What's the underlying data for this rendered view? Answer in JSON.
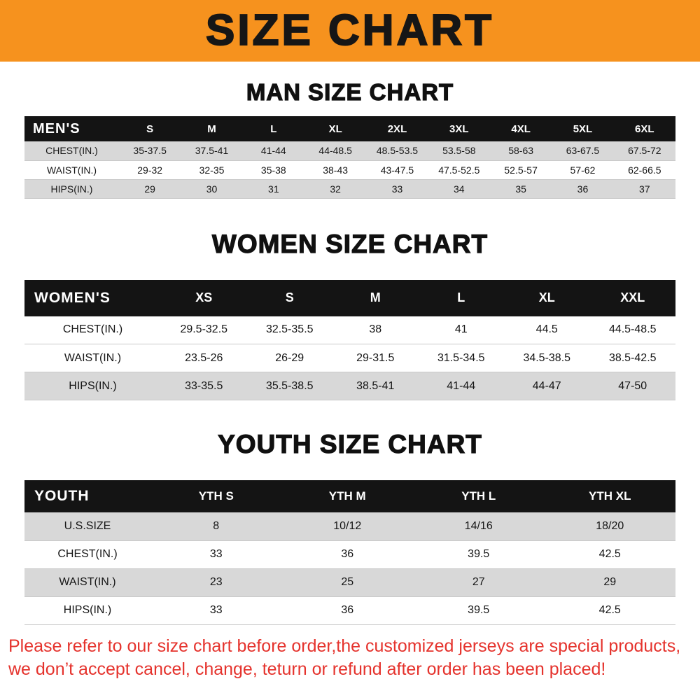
{
  "banner": {
    "title": "SIZE CHART"
  },
  "colors": {
    "banner_bg": "#f6921e",
    "table_header_bg": "#141414",
    "row_gray": "#d8d8d8",
    "footnote_red": "#e5332d"
  },
  "sections": [
    {
      "heading": "MAN SIZE CHART",
      "table": {
        "header": [
          "MEN'S",
          "S",
          "M",
          "L",
          "XL",
          "2XL",
          "3XL",
          "4XL",
          "5XL",
          "6XL"
        ],
        "rows": [
          [
            "CHEST(IN.)",
            "35-37.5",
            "37.5-41",
            "41-44",
            "44-48.5",
            "48.5-53.5",
            "53.5-58",
            "58-63",
            "63-67.5",
            "67.5-72"
          ],
          [
            "WAIST(IN.)",
            "29-32",
            "32-35",
            "35-38",
            "38-43",
            "43-47.5",
            "47.5-52.5",
            "52.5-57",
            "57-62",
            "62-66.5"
          ],
          [
            "HIPS(IN.)",
            "29",
            "30",
            "31",
            "32",
            "33",
            "34",
            "35",
            "36",
            "37"
          ]
        ]
      }
    },
    {
      "heading": "WOMEN SIZE CHART",
      "table": {
        "header": [
          "WOMEN'S",
          "XS",
          "S",
          "M",
          "L",
          "XL",
          "XXL"
        ],
        "rows": [
          [
            "CHEST(IN.)",
            "29.5-32.5",
            "32.5-35.5",
            "38",
            "41",
            "44.5",
            "44.5-48.5"
          ],
          [
            "WAIST(IN.)",
            "23.5-26",
            "26-29",
            "29-31.5",
            "31.5-34.5",
            "34.5-38.5",
            "38.5-42.5"
          ],
          [
            "HIPS(IN.)",
            "33-35.5",
            "35.5-38.5",
            "38.5-41",
            "41-44",
            "44-47",
            "47-50"
          ]
        ]
      }
    },
    {
      "heading": "YOUTH SIZE CHART",
      "table": {
        "header": [
          "YOUTH",
          "YTH S",
          "YTH M",
          "YTH L",
          "YTH XL"
        ],
        "rows": [
          [
            "U.S.SIZE",
            "8",
            "10/12",
            "14/16",
            "18/20"
          ],
          [
            "CHEST(IN.)",
            "33",
            "36",
            "39.5",
            "42.5"
          ],
          [
            "WAIST(IN.)",
            "23",
            "25",
            "27",
            "29"
          ],
          [
            "HIPS(IN.)",
            "33",
            "36",
            "39.5",
            "42.5"
          ]
        ]
      }
    }
  ],
  "footnote": {
    "line1": "Please refer to our size chart before order,the customized jerseys are special products,",
    "line2": "we don’t accept cancel, change, teturn or refund after order has been placed!"
  }
}
